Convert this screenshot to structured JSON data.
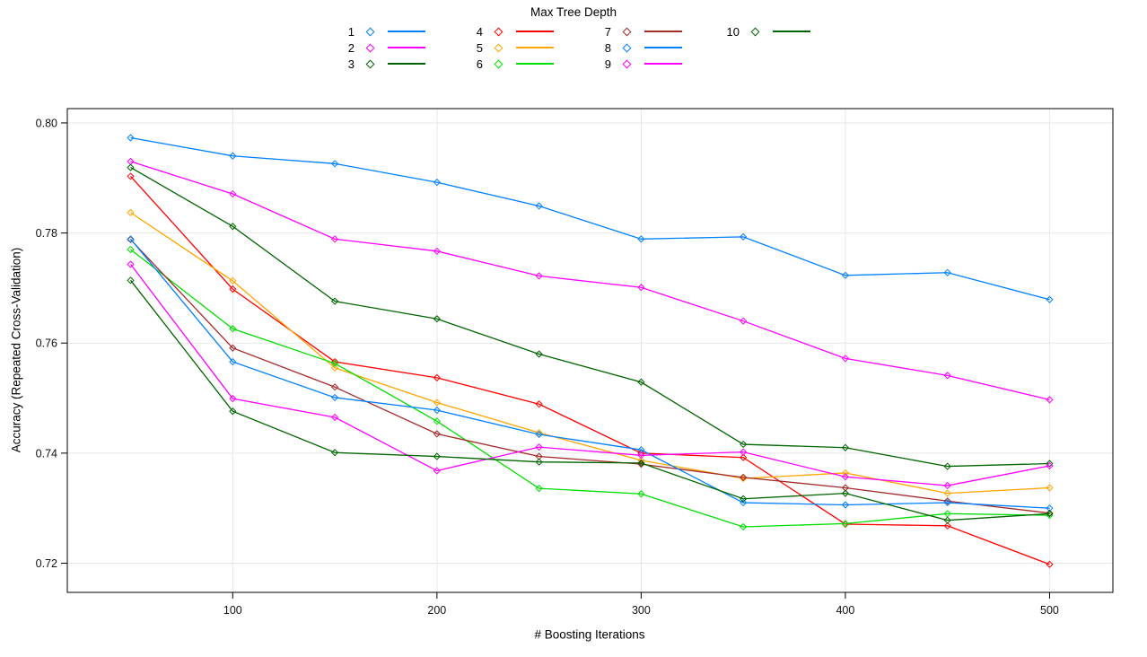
{
  "chart_data": {
    "type": "line",
    "legend_title": "Max Tree Depth",
    "xlabel": "# Boosting Iterations",
    "ylabel": "Accuracy (Repeated Cross-Validation)",
    "x": [
      50,
      100,
      150,
      200,
      250,
      300,
      350,
      400,
      450,
      500
    ],
    "xlim": [
      19,
      531
    ],
    "ylim": [
      0.7147,
      0.8026
    ],
    "xtick_values": [
      100,
      200,
      300,
      400,
      500
    ],
    "xtick_labels": [
      "100",
      "200",
      "300",
      "400",
      "500"
    ],
    "ytick_values": [
      0.72,
      0.74,
      0.76,
      0.78,
      0.8
    ],
    "ytick_labels": [
      "0.72",
      "0.74",
      "0.76",
      "0.78",
      "0.80"
    ],
    "grid": true,
    "legend_position": "top",
    "marker": "open-diamond",
    "series": [
      {
        "name": "1",
        "color": "#0080ff",
        "values": [
          0.7973,
          0.794,
          0.7926,
          0.7892,
          0.7849,
          0.7789,
          0.7793,
          0.7723,
          0.7728,
          0.7679
        ]
      },
      {
        "name": "2",
        "color": "#ff00ff",
        "values": [
          0.793,
          0.7871,
          0.7789,
          0.7767,
          0.7722,
          0.7701,
          0.764,
          0.7572,
          0.7541,
          0.7497
        ]
      },
      {
        "name": "3",
        "color": "#006400",
        "values": [
          0.7919,
          0.7812,
          0.7676,
          0.7644,
          0.758,
          0.7529,
          0.7416,
          0.741,
          0.7376,
          0.7381
        ]
      },
      {
        "name": "4",
        "color": "#ff0000",
        "values": [
          0.7903,
          0.7698,
          0.7566,
          0.7537,
          0.7489,
          0.74,
          0.7392,
          0.7271,
          0.7268,
          0.7198
        ]
      },
      {
        "name": "5",
        "color": "#ffa500",
        "values": [
          0.7837,
          0.7713,
          0.7555,
          0.7492,
          0.7437,
          0.7387,
          0.7354,
          0.7364,
          0.7327,
          0.7337
        ]
      },
      {
        "name": "6",
        "color": "#00dd00",
        "values": [
          0.777,
          0.7626,
          0.7563,
          0.7458,
          0.7336,
          0.7326,
          0.7266,
          0.7272,
          0.729,
          0.7287
        ]
      },
      {
        "name": "7",
        "color": "#a52a2a",
        "values": [
          0.7788,
          0.7591,
          0.752,
          0.7435,
          0.7394,
          0.738,
          0.7356,
          0.7337,
          0.7313,
          0.7291
        ]
      },
      {
        "name": "8",
        "color": "#0080ff",
        "values": [
          0.7789,
          0.7566,
          0.7501,
          0.7478,
          0.7434,
          0.7406,
          0.731,
          0.7306,
          0.731,
          0.73
        ]
      },
      {
        "name": "9",
        "color": "#ff00ff",
        "values": [
          0.7743,
          0.7499,
          0.7465,
          0.7368,
          0.7411,
          0.7396,
          0.7402,
          0.7357,
          0.7341,
          0.7377
        ]
      },
      {
        "name": "10",
        "color": "#006400",
        "values": [
          0.7714,
          0.7476,
          0.7401,
          0.7394,
          0.7384,
          0.7382,
          0.7317,
          0.7327,
          0.7278,
          0.729
        ]
      }
    ]
  }
}
